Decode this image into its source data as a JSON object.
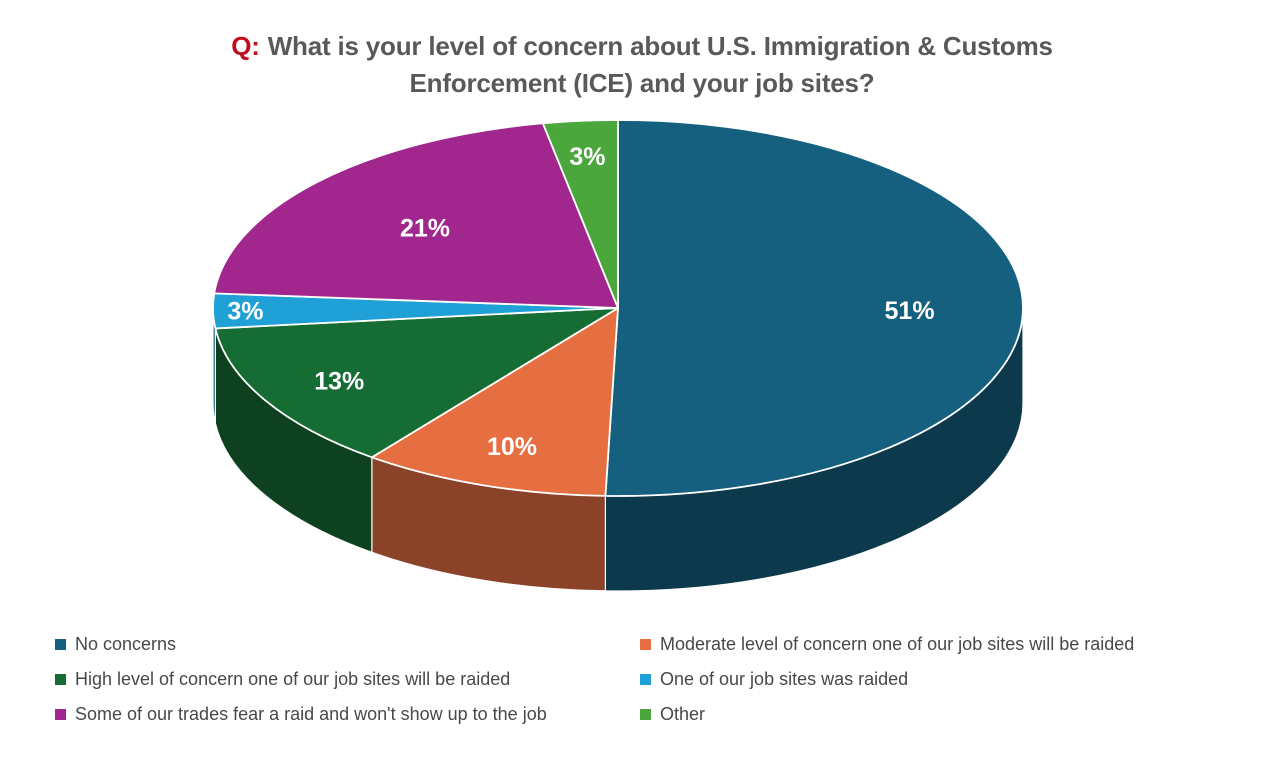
{
  "title": {
    "q": "Q:",
    "line1": "What is your level of concern about U.S. Immigration & Customs",
    "line2": "Enforcement (ICE) and your job sites?"
  },
  "chart_data": {
    "type": "pie",
    "style": "3d",
    "title": "Q: What is your level of concern about U.S. Immigration & Customs Enforcement (ICE) and your job sites?",
    "start_angle_deg": 0,
    "direction": "clockwise",
    "legend_position": "bottom",
    "legend_columns": 2,
    "background": "#FFFFFF",
    "slices": [
      {
        "label": "No concerns",
        "value": 51,
        "pct_label": "51%",
        "color": "#14607E",
        "label_r": 0.72
      },
      {
        "label": "Moderate level of concern one of our job sites will be raided",
        "value": 10,
        "pct_label": "10%",
        "color": "#E66F42",
        "label_r": 0.78
      },
      {
        "label": "High level of concern one of our job sites will be raided",
        "value": 13,
        "pct_label": "13%",
        "color": "#156D33",
        "label_r": 0.79
      },
      {
        "label": "One of our job sites was raided",
        "value": 3,
        "pct_label": "3%",
        "color": "#1FA0D6",
        "label_r": 0.92
      },
      {
        "label": "Some of our trades fear a raid and won't show up to the job",
        "value": 21,
        "pct_label": "21%",
        "color": "#A1278F",
        "label_r": 0.64
      },
      {
        "label": "Other",
        "value": 3,
        "pct_label": "3%",
        "color": "#4BA63B",
        "label_r": 0.81
      }
    ],
    "colors": {
      "title_text": "#58595B",
      "title_q_prefix": "#C00D1D",
      "legend_text": "#48484A",
      "slice_label_text": "#FFFFFF",
      "slice_outline": "#FFFFFF"
    }
  }
}
